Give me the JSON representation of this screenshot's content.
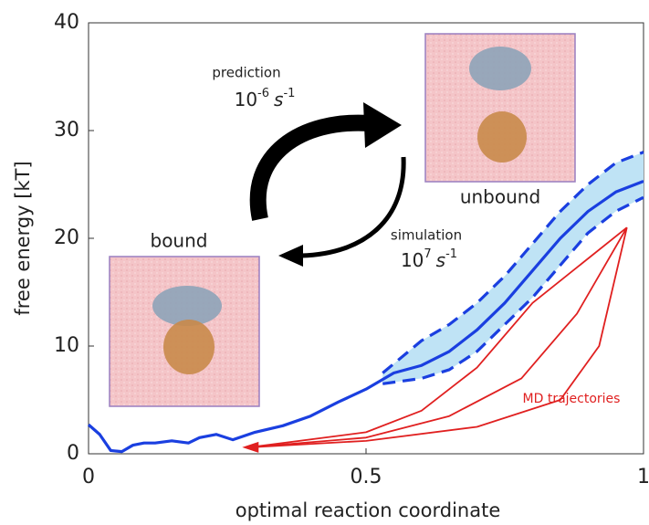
{
  "chart_data": {
    "type": "line",
    "xlabel": "optimal reaction coordinate",
    "ylabel": "free energy [kT]",
    "xlim": [
      0,
      1
    ],
    "xticks": [
      0,
      0.5,
      1
    ],
    "ylim": [
      0,
      40
    ],
    "yticks": [
      0,
      10,
      20,
      30,
      40
    ],
    "band_color": "#bfe3f5",
    "series": [
      {
        "color": "#1a3fe0",
        "dash": false,
        "x": [
          0,
          0.02,
          0.04,
          0.06,
          0.08,
          0.1,
          0.12,
          0.15,
          0.18,
          0.2,
          0.23,
          0.26,
          0.3,
          0.35,
          0.4,
          0.45,
          0.5,
          0.55,
          0.6,
          0.65,
          0.7,
          0.75,
          0.8,
          0.85,
          0.9,
          0.95,
          1
        ],
        "values": [
          2.7,
          1.8,
          0.3,
          0.2,
          0.8,
          1.0,
          1.0,
          1.2,
          1.0,
          1.5,
          1.8,
          1.3,
          2.0,
          2.6,
          3.5,
          4.8,
          6.0,
          7.5,
          8.2,
          9.5,
          11.5,
          14,
          17,
          20,
          22.5,
          24.3,
          25.3
        ]
      },
      {
        "color": "#1a3fe0",
        "dash": true,
        "x": [
          0.53,
          0.6,
          0.65,
          0.7,
          0.75,
          0.8,
          0.85,
          0.9,
          0.95,
          1
        ],
        "values": [
          7.5,
          10.5,
          12,
          14,
          16.5,
          19.5,
          22.5,
          25,
          27,
          28
        ]
      },
      {
        "color": "#1a3fe0",
        "dash": true,
        "x": [
          0.53,
          0.6,
          0.65,
          0.7,
          0.75,
          0.8,
          0.85,
          0.9,
          0.95,
          1
        ],
        "values": [
          6.5,
          7,
          7.8,
          9.5,
          12,
          14.5,
          17.5,
          20.5,
          22.5,
          23.8
        ]
      },
      {
        "color": "#e02020",
        "dash": false,
        "x": [
          0.29,
          0.5,
          0.7,
          0.85,
          0.92,
          0.97
        ],
        "values": [
          0.6,
          1.2,
          2.5,
          5,
          10,
          21
        ]
      },
      {
        "color": "#e02020",
        "dash": false,
        "x": [
          0.29,
          0.5,
          0.65,
          0.78,
          0.88,
          0.97
        ],
        "values": [
          0.6,
          1.5,
          3.5,
          7,
          13,
          21
        ]
      },
      {
        "color": "#e02020",
        "dash": false,
        "x": [
          0.29,
          0.5,
          0.6,
          0.7,
          0.8,
          0.97
        ],
        "values": [
          0.6,
          2,
          4,
          8,
          14,
          21
        ]
      }
    ],
    "annotations": {
      "prediction": "prediction",
      "prediction_rate": {
        "base": "10",
        "exp": "-6",
        "unit": "s",
        "unit_exp": "-1"
      },
      "simulation": "simulation",
      "simulation_rate": {
        "base": "10",
        "exp": "7",
        "unit": "s",
        "unit_exp": "-1"
      },
      "bound": "bound",
      "unbound": "unbound",
      "md": "MD trajectories"
    }
  }
}
